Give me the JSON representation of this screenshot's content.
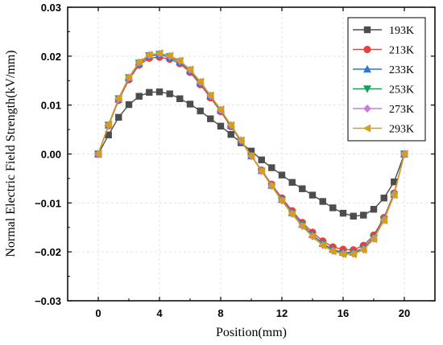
{
  "chart_data": {
    "type": "line",
    "xlabel": "Position(mm)",
    "ylabel": "Normal Electric Field Strength(kV/mm)",
    "xlim": [
      -2,
      22
    ],
    "ylim": [
      -0.03,
      0.03
    ],
    "xticks": [
      0,
      4,
      8,
      12,
      16,
      20
    ],
    "xtick_labels": [
      "0",
      "4",
      "8",
      "12",
      "16",
      "20"
    ],
    "yticks": [
      -0.03,
      -0.02,
      -0.01,
      0.0,
      0.01,
      0.02,
      0.03
    ],
    "ytick_labels": [
      "−0.03",
      "−0.02",
      "−0.01",
      "0.00",
      "0.01",
      "0.02",
      "0.03"
    ],
    "grid": true,
    "legend_position": "top-right",
    "x": [
      0,
      0.67,
      1.33,
      2,
      2.67,
      3.33,
      4,
      4.67,
      5.33,
      6,
      6.67,
      7.33,
      8,
      8.67,
      9.33,
      10,
      10.67,
      11.33,
      12,
      12.67,
      13.33,
      14,
      14.67,
      15.33,
      16,
      16.67,
      17.33,
      18,
      18.67,
      19.33,
      20
    ],
    "series": [
      {
        "name": "193K",
        "color": "#4d4d4d",
        "marker": "square",
        "values": [
          0,
          0.0039,
          0.0075,
          0.0101,
          0.0118,
          0.0126,
          0.0127,
          0.0123,
          0.0113,
          0.0102,
          0.0088,
          0.0072,
          0.0057,
          0.004,
          0.0023,
          0.0006,
          -0.0012,
          -0.0028,
          -0.0043,
          -0.0058,
          -0.0071,
          -0.0084,
          -0.0097,
          -0.011,
          -0.0121,
          -0.0127,
          -0.0125,
          -0.0113,
          -0.009,
          -0.0057,
          0
        ]
      },
      {
        "name": "213K",
        "color": "#e8403a",
        "marker": "circle",
        "values": [
          0,
          0.0058,
          0.011,
          0.0152,
          0.0182,
          0.0196,
          0.0198,
          0.0194,
          0.0185,
          0.0167,
          0.0142,
          0.0115,
          0.0087,
          0.0056,
          0.0026,
          -0.0004,
          -0.0033,
          -0.0062,
          -0.009,
          -0.0116,
          -0.014,
          -0.016,
          -0.0178,
          -0.019,
          -0.0195,
          -0.0196,
          -0.0187,
          -0.0166,
          -0.013,
          -0.008,
          0
        ]
      },
      {
        "name": "233K",
        "color": "#2979d9",
        "marker": "triangle-up",
        "values": [
          0,
          0.0059,
          0.0112,
          0.0155,
          0.0185,
          0.02,
          0.0203,
          0.0198,
          0.0188,
          0.017,
          0.0145,
          0.0118,
          0.0089,
          0.0058,
          0.0027,
          -0.0004,
          -0.0034,
          -0.0064,
          -0.0093,
          -0.012,
          -0.0144,
          -0.0165,
          -0.0183,
          -0.0195,
          -0.0201,
          -0.0201,
          -0.0192,
          -0.017,
          -0.0133,
          -0.0082,
          0
        ]
      },
      {
        "name": "253K",
        "color": "#17a05a",
        "marker": "triangle-down",
        "values": [
          0,
          0.0059,
          0.0113,
          0.0156,
          0.0186,
          0.0201,
          0.0204,
          0.0199,
          0.0189,
          0.0171,
          0.0146,
          0.0119,
          0.009,
          0.0058,
          0.0027,
          -0.0004,
          -0.0035,
          -0.0065,
          -0.0094,
          -0.0121,
          -0.0146,
          -0.0167,
          -0.0185,
          -0.0197,
          -0.0203,
          -0.0203,
          -0.0194,
          -0.0172,
          -0.0134,
          -0.0083,
          0
        ]
      },
      {
        "name": "273K",
        "color": "#c77ddc",
        "marker": "diamond",
        "values": [
          0,
          0.0059,
          0.0113,
          0.0156,
          0.0187,
          0.0202,
          0.0205,
          0.02,
          0.019,
          0.0172,
          0.0147,
          0.0119,
          0.009,
          0.0059,
          0.0028,
          -0.0004,
          -0.0035,
          -0.0065,
          -0.0095,
          -0.0122,
          -0.0147,
          -0.0168,
          -0.0186,
          -0.0198,
          -0.0204,
          -0.0204,
          -0.0195,
          -0.0173,
          -0.0135,
          -0.0083,
          0
        ]
      },
      {
        "name": "293K",
        "color": "#d4a017",
        "marker": "triangle-left",
        "values": [
          0,
          0.006,
          0.0114,
          0.0157,
          0.0188,
          0.0203,
          0.0206,
          0.0201,
          0.0191,
          0.0173,
          0.0148,
          0.012,
          0.0091,
          0.0059,
          0.0028,
          -0.0004,
          -0.0035,
          -0.0066,
          -0.0096,
          -0.0123,
          -0.0148,
          -0.0169,
          -0.0187,
          -0.0199,
          -0.0205,
          -0.0205,
          -0.0196,
          -0.0174,
          -0.0136,
          -0.0084,
          0
        ]
      }
    ]
  }
}
